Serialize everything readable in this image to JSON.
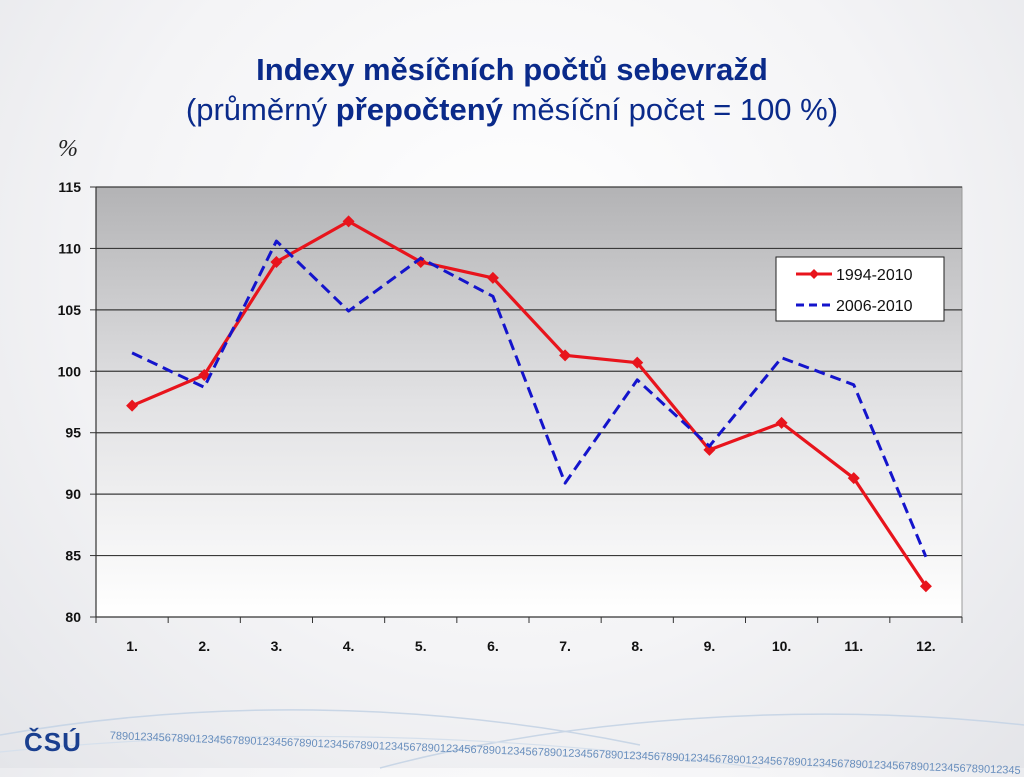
{
  "title": {
    "line1": "Indexy měsíčních počtů sebevražd",
    "line2_pre": "(průměrný ",
    "line2_bold": "přepočtený",
    "line2_post": " měsíční počet = 100 %)"
  },
  "unit": "%",
  "chart_data": {
    "type": "line",
    "categories": [
      "1.",
      "2.",
      "3.",
      "4.",
      "5.",
      "6.",
      "7.",
      "8.",
      "9.",
      "10.",
      "11.",
      "12."
    ],
    "series": [
      {
        "name": "1994-2010",
        "values": [
          97.2,
          99.7,
          108.9,
          112.2,
          108.9,
          107.6,
          101.3,
          100.7,
          93.6,
          95.8,
          91.3,
          82.5
        ],
        "color": "#e8141c",
        "style": "solid",
        "marker": "diamond"
      },
      {
        "name": "2006-2010",
        "values": [
          101.5,
          98.7,
          110.6,
          104.9,
          109.2,
          106.1,
          90.9,
          99.3,
          93.9,
          101.1,
          98.9,
          84.9
        ],
        "color": "#1414cc",
        "style": "dashed",
        "marker": "none"
      }
    ],
    "ylim": [
      80,
      115
    ],
    "yticks": [
      80,
      85,
      90,
      95,
      100,
      105,
      110,
      115
    ],
    "grid": true,
    "legend_position": "top-right",
    "xlabel": "",
    "ylabel": "%"
  },
  "footer": {
    "logo": "ČSÚ",
    "digits": "78901234567890123456789012345678901234567890123456789012345678901234567890123456789012345678901234567890123456789012345678901234567890123456789012345"
  }
}
